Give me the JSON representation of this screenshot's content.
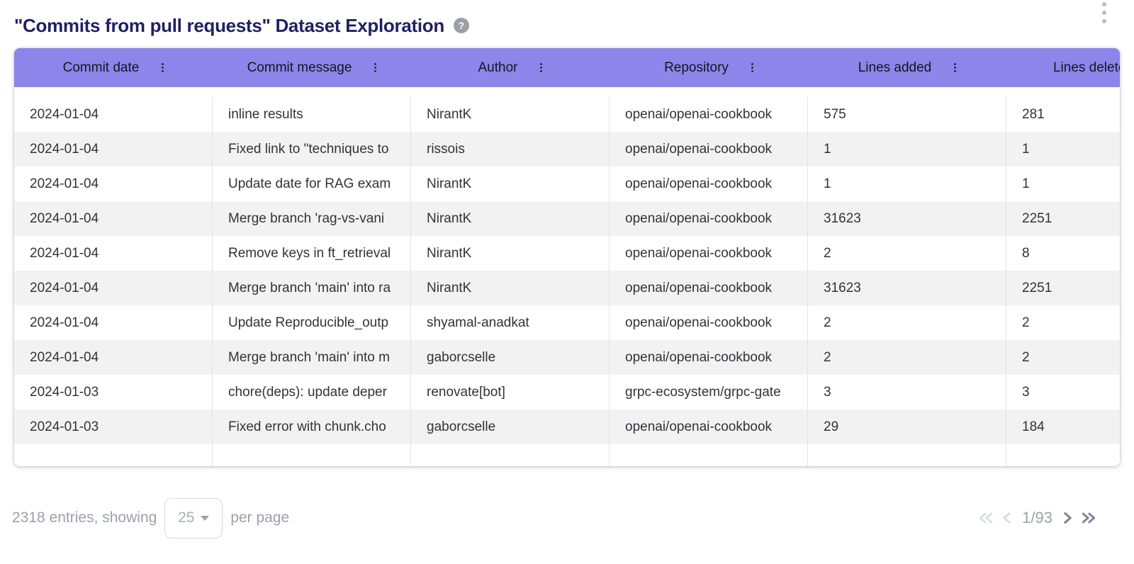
{
  "header": {
    "title": "\"Commits from pull requests\" Dataset Exploration",
    "help_glyph": "?"
  },
  "table": {
    "columns": [
      "Commit date",
      "Commit message",
      "Author",
      "Repository",
      "Lines added",
      "Lines deleted"
    ],
    "rows": [
      {
        "date": "2024-01-04",
        "message": "inline results",
        "author": "NirantK",
        "repository": "openai/openai-cookbook",
        "lines_added": "575",
        "lines_deleted": "281"
      },
      {
        "date": "2024-01-04",
        "message": "Fixed link to \"techniques to",
        "author": "rissois",
        "repository": "openai/openai-cookbook",
        "lines_added": "1",
        "lines_deleted": "1"
      },
      {
        "date": "2024-01-04",
        "message": "Update date for RAG exam",
        "author": "NirantK",
        "repository": "openai/openai-cookbook",
        "lines_added": "1",
        "lines_deleted": "1"
      },
      {
        "date": "2024-01-04",
        "message": "Merge branch 'rag-vs-vani",
        "author": "NirantK",
        "repository": "openai/openai-cookbook",
        "lines_added": "31623",
        "lines_deleted": "2251"
      },
      {
        "date": "2024-01-04",
        "message": "Remove keys in ft_retrieval",
        "author": "NirantK",
        "repository": "openai/openai-cookbook",
        "lines_added": "2",
        "lines_deleted": "8"
      },
      {
        "date": "2024-01-04",
        "message": "Merge branch 'main' into ra",
        "author": "NirantK",
        "repository": "openai/openai-cookbook",
        "lines_added": "31623",
        "lines_deleted": "2251"
      },
      {
        "date": "2024-01-04",
        "message": "Update Reproducible_outp",
        "author": "shyamal-anadkat",
        "repository": "openai/openai-cookbook",
        "lines_added": "2",
        "lines_deleted": "2"
      },
      {
        "date": "2024-01-04",
        "message": "Merge branch 'main' into m",
        "author": "gaborcselle",
        "repository": "openai/openai-cookbook",
        "lines_added": "2",
        "lines_deleted": "2"
      },
      {
        "date": "2024-01-03",
        "message": "chore(deps): update deper",
        "author": "renovate[bot]",
        "repository": "grpc-ecosystem/grpc-gate",
        "lines_added": "3",
        "lines_deleted": "3"
      },
      {
        "date": "2024-01-03",
        "message": "Fixed error with chunk.cho",
        "author": "gaborcselle",
        "repository": "openai/openai-cookbook",
        "lines_added": "29",
        "lines_deleted": "184"
      }
    ]
  },
  "footer": {
    "entries_text": "2318 entries, showing",
    "page_size": "25",
    "per_page_text": "per page",
    "page_indicator": "1/93"
  },
  "colors": {
    "header_bg": "#8e85ea",
    "title_text": "#221f63",
    "row_stripe": "#f2f2f2"
  }
}
